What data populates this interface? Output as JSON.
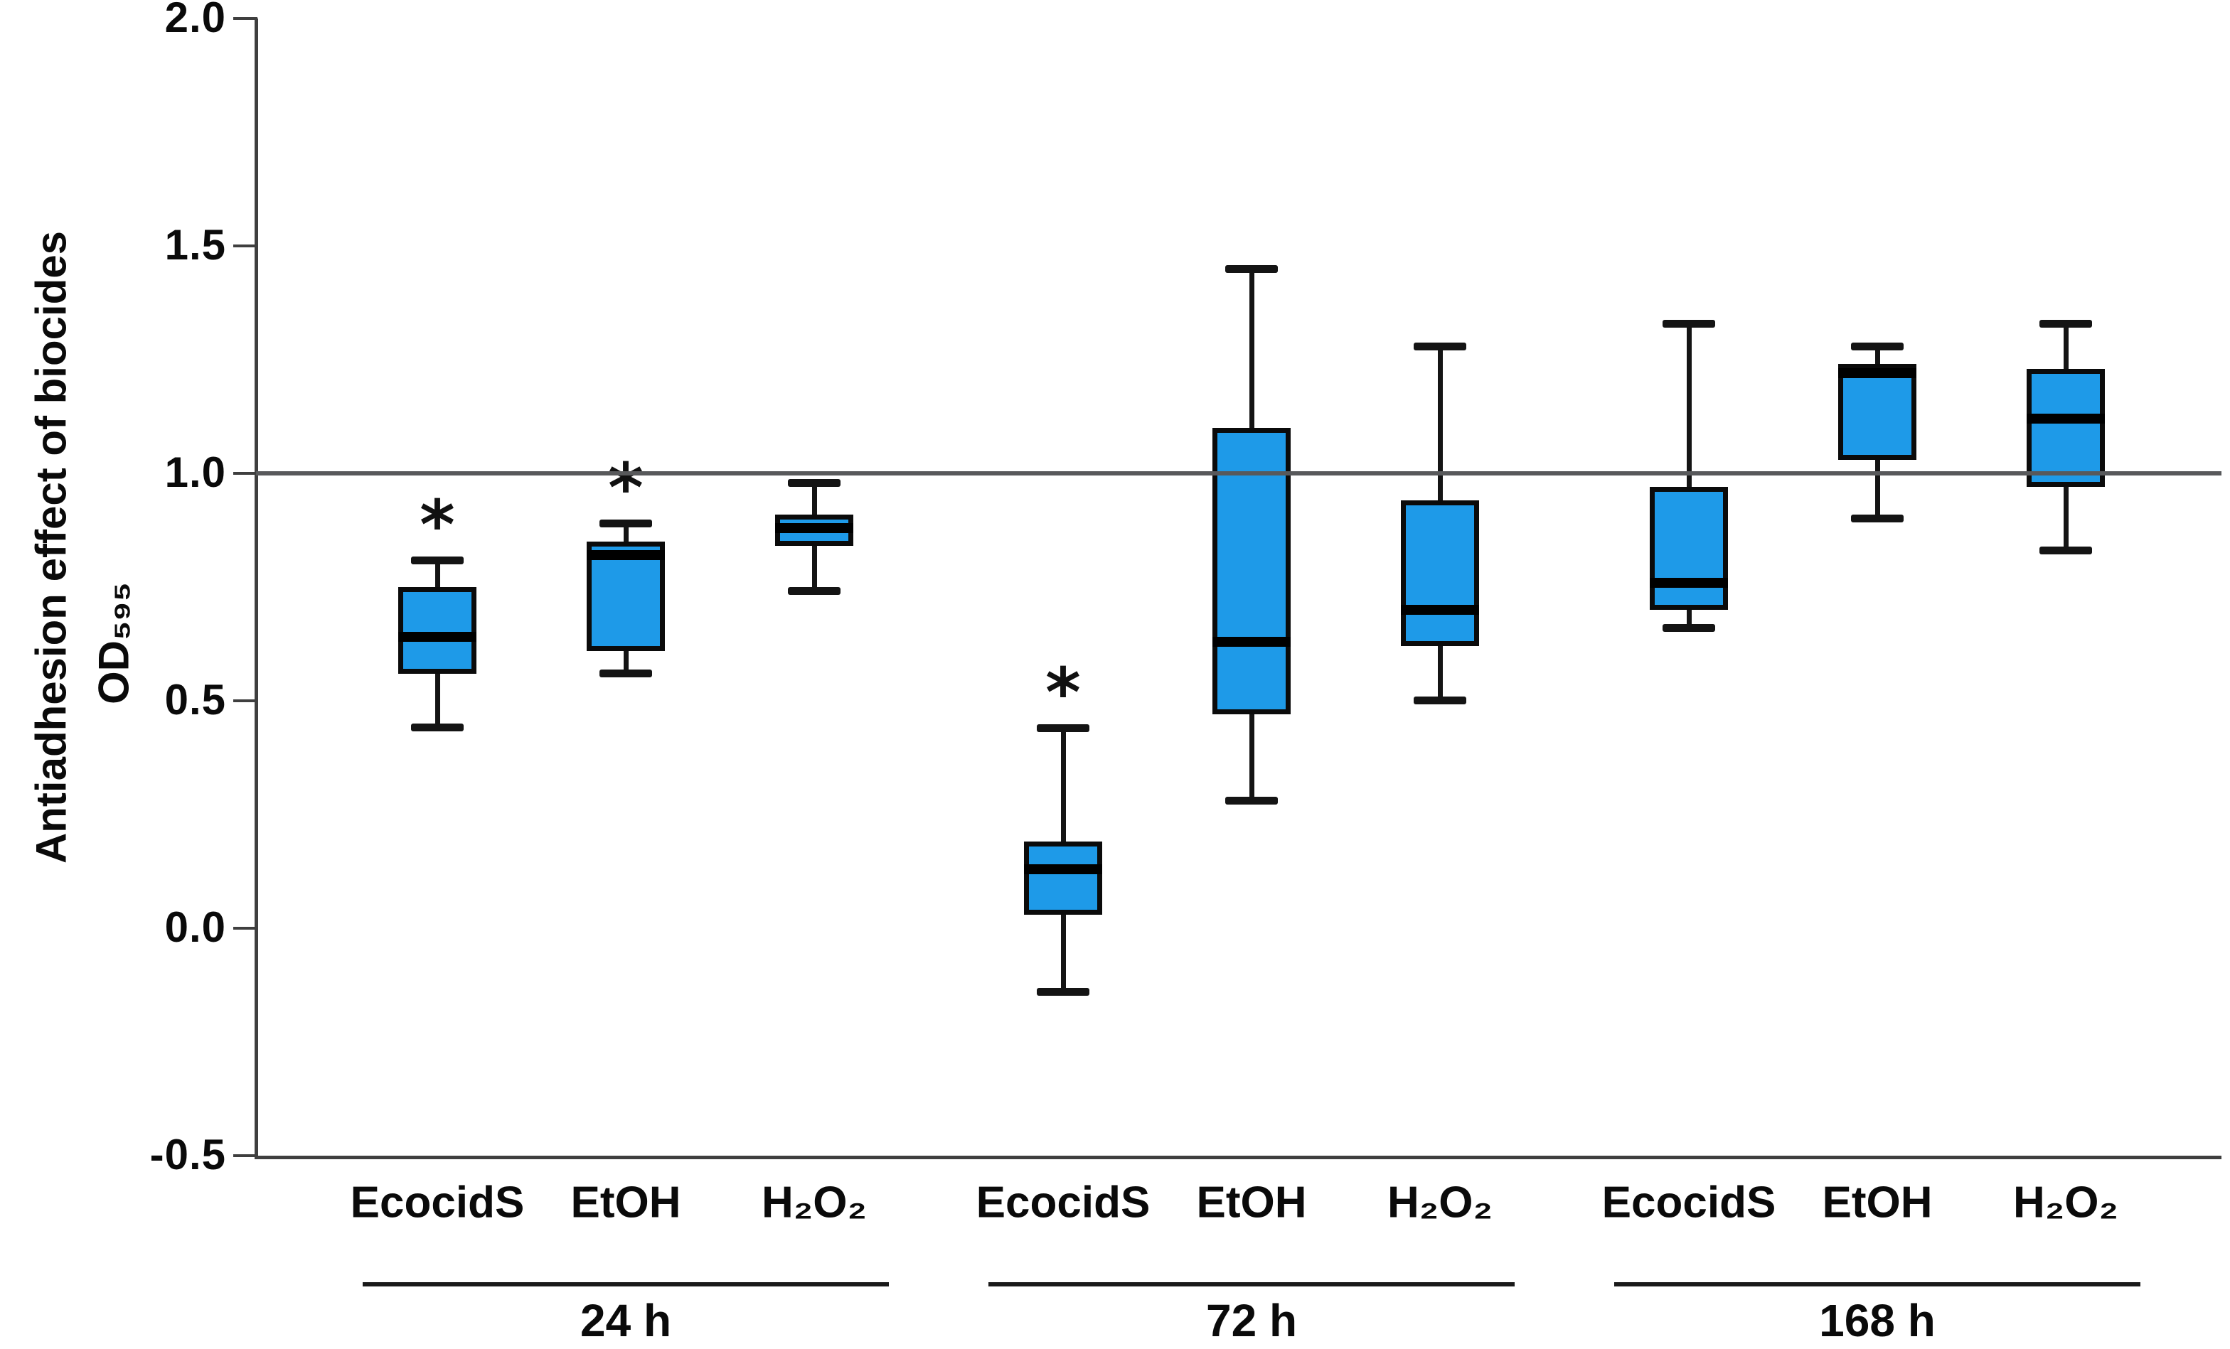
{
  "figure": {
    "background": "#ffffff"
  },
  "y_axis": {
    "title": "Antiadhesion effect of biocides",
    "unit_label": "OD₅₉₅"
  },
  "chart_data": {
    "type": "boxplot",
    "title": "",
    "ylabel": "Antiadhesion effect of biocides",
    "y_unit_label": "OD₅₉₅",
    "ylim": [
      -0.5,
      2.0
    ],
    "ytick_values": [
      2.0,
      1.5,
      1.0,
      0.5,
      0.0,
      -0.5
    ],
    "ytick_labels": [
      "2.0",
      "1.5",
      "1.0",
      "0.5",
      "0.0",
      "-0.5"
    ],
    "grid": false,
    "legend": null,
    "reference_line_y": 1.0,
    "significance_marker": "*",
    "groups": [
      {
        "label": "24 h",
        "boxes": [
          {
            "category": "EcocidS",
            "whisker_low": 0.44,
            "q1": 0.56,
            "median": 0.64,
            "q3": 0.75,
            "whisker_high": 0.81,
            "significant": true
          },
          {
            "category": "EtOH",
            "whisker_low": 0.56,
            "q1": 0.61,
            "median": 0.82,
            "q3": 0.85,
            "whisker_high": 0.89,
            "significant": true
          },
          {
            "category": "H₂O₂",
            "whisker_low": 0.74,
            "q1": 0.84,
            "median": 0.88,
            "q3": 0.91,
            "whisker_high": 0.98,
            "significant": false
          }
        ]
      },
      {
        "label": "72 h",
        "boxes": [
          {
            "category": "EcocidS",
            "whisker_low": -0.14,
            "q1": 0.03,
            "median": 0.13,
            "q3": 0.19,
            "whisker_high": 0.44,
            "significant": true
          },
          {
            "category": "EtOH",
            "whisker_low": 0.28,
            "q1": 0.47,
            "median": 0.63,
            "q3": 1.1,
            "whisker_high": 1.45,
            "significant": false
          },
          {
            "category": "H₂O₂",
            "whisker_low": 0.5,
            "q1": 0.62,
            "median": 0.7,
            "q3": 0.94,
            "whisker_high": 1.28,
            "significant": false
          }
        ]
      },
      {
        "label": "168 h",
        "boxes": [
          {
            "category": "EcocidS",
            "whisker_low": 0.66,
            "q1": 0.7,
            "median": 0.76,
            "q3": 0.97,
            "whisker_high": 1.33,
            "significant": false
          },
          {
            "category": "EtOH",
            "whisker_low": 0.9,
            "q1": 1.03,
            "median": 1.22,
            "q3": 1.24,
            "whisker_high": 1.28,
            "significant": false
          },
          {
            "category": "H₂O₂",
            "whisker_low": 0.83,
            "q1": 0.97,
            "median": 1.12,
            "q3": 1.23,
            "whisker_high": 1.33,
            "significant": false
          }
        ]
      }
    ],
    "colors": {
      "box_fill": "#1E9AE8",
      "box_border": "#0B0B0B",
      "median_line": "#000000",
      "whisker": "#141414",
      "reference_line": "#58595B",
      "axis": "#3F3F3F",
      "text": "#0A0A0A"
    }
  }
}
